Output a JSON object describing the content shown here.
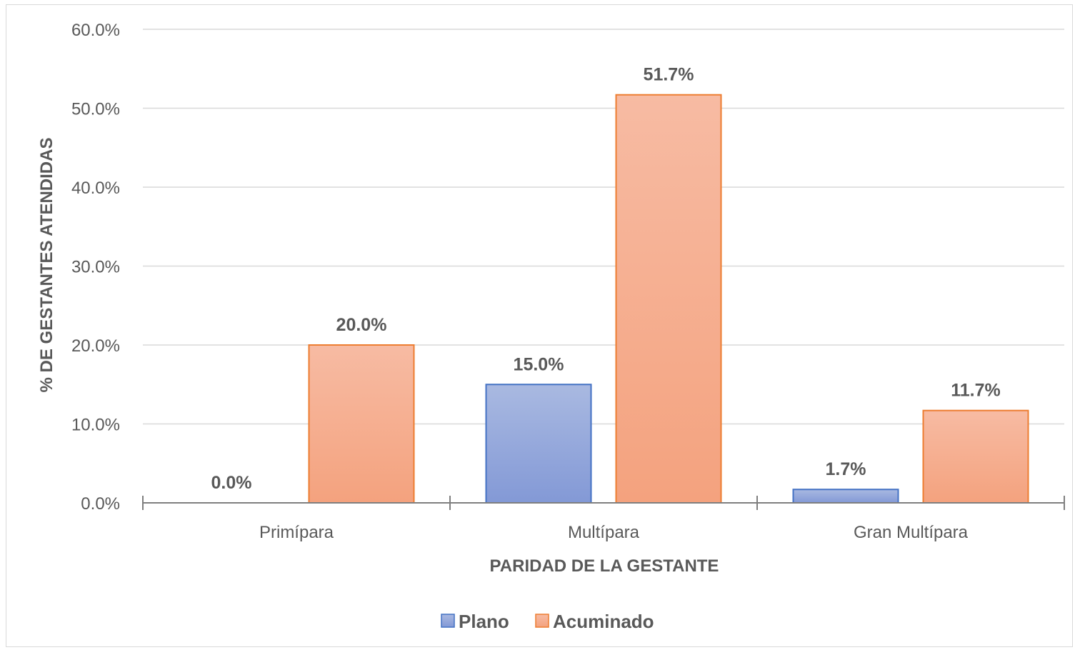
{
  "chart_data": {
    "type": "bar",
    "categories": [
      "Primípara",
      "Multípara",
      "Gran Multípara"
    ],
    "series": [
      {
        "name": "Plano",
        "values": [
          0.0,
          15.0,
          1.7
        ],
        "labels": [
          "0.0%",
          "15.0%",
          "1.7%"
        ],
        "color": "#8FA4DB",
        "border": "#4472C4"
      },
      {
        "name": "Acuminado",
        "values": [
          20.0,
          51.7,
          11.7
        ],
        "labels": [
          "20.0%",
          "51.7%",
          "11.7%"
        ],
        "color": "#F6AF8E",
        "border": "#ED7D31"
      }
    ],
    "xlabel": "PARIDAD DE LA GESTANTE",
    "ylabel": "% DE GESTANTES ATENDIDAS",
    "ylim": [
      0,
      60
    ],
    "yticks": [
      "0.0%",
      "10.0%",
      "20.0%",
      "30.0%",
      "40.0%",
      "50.0%",
      "60.0%"
    ],
    "grid": true,
    "legend_position": "bottom"
  }
}
